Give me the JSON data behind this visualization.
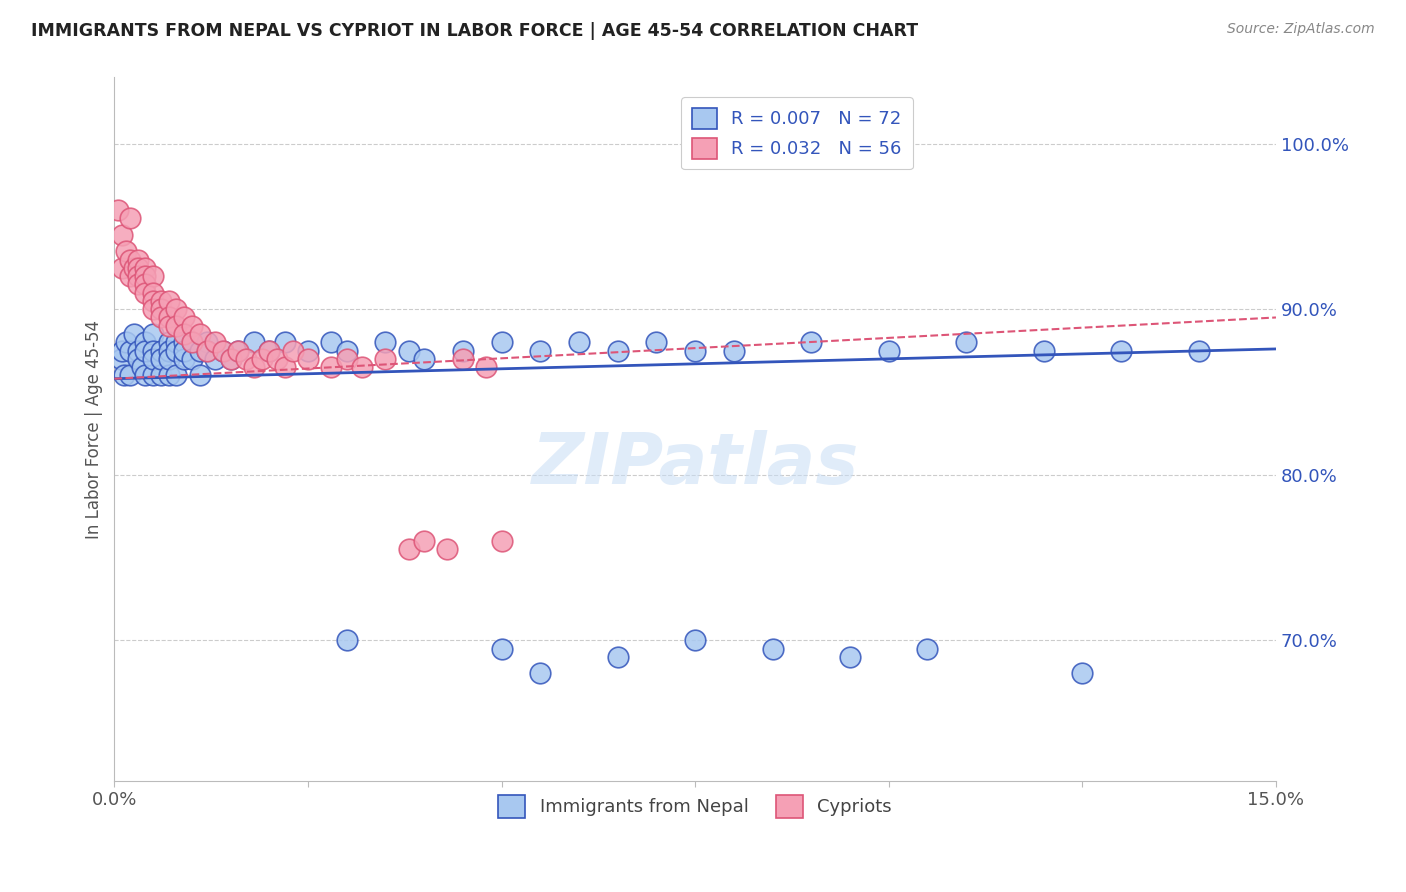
{
  "title": "IMMIGRANTS FROM NEPAL VS CYPRIOT IN LABOR FORCE | AGE 45-54 CORRELATION CHART",
  "source": "Source: ZipAtlas.com",
  "ylabel": "In Labor Force | Age 45-54",
  "ytick_labels": [
    "100.0%",
    "90.0%",
    "80.0%",
    "70.0%"
  ],
  "ytick_values": [
    1.0,
    0.9,
    0.8,
    0.7
  ],
  "xlim": [
    0.0,
    0.15
  ],
  "ylim": [
    0.615,
    1.04
  ],
  "color_blue": "#a8c8f0",
  "color_pink": "#f5a0b5",
  "line_blue": "#3355bb",
  "line_pink": "#dd5577",
  "nepal_x": [
    0.0008,
    0.001,
    0.0012,
    0.0015,
    0.002,
    0.002,
    0.0025,
    0.003,
    0.003,
    0.0035,
    0.004,
    0.004,
    0.004,
    0.005,
    0.005,
    0.005,
    0.005,
    0.006,
    0.006,
    0.006,
    0.007,
    0.007,
    0.007,
    0.007,
    0.008,
    0.008,
    0.008,
    0.009,
    0.009,
    0.009,
    0.01,
    0.01,
    0.011,
    0.011,
    0.012,
    0.012,
    0.013,
    0.014,
    0.015,
    0.016,
    0.018,
    0.02,
    0.022,
    0.025,
    0.028,
    0.03,
    0.035,
    0.038,
    0.04,
    0.045,
    0.05,
    0.055,
    0.06,
    0.065,
    0.07,
    0.075,
    0.08,
    0.09,
    0.1,
    0.11,
    0.12,
    0.13,
    0.14,
    0.03,
    0.05,
    0.055,
    0.065,
    0.075,
    0.085,
    0.095,
    0.105,
    0.125
  ],
  "nepal_y": [
    0.87,
    0.875,
    0.86,
    0.88,
    0.875,
    0.86,
    0.885,
    0.875,
    0.87,
    0.865,
    0.88,
    0.875,
    0.86,
    0.885,
    0.875,
    0.86,
    0.87,
    0.875,
    0.86,
    0.87,
    0.88,
    0.875,
    0.86,
    0.87,
    0.88,
    0.875,
    0.86,
    0.88,
    0.87,
    0.875,
    0.88,
    0.87,
    0.875,
    0.86,
    0.88,
    0.875,
    0.87,
    0.875,
    0.87,
    0.875,
    0.88,
    0.875,
    0.88,
    0.875,
    0.88,
    0.875,
    0.88,
    0.875,
    0.87,
    0.875,
    0.88,
    0.875,
    0.88,
    0.875,
    0.88,
    0.875,
    0.875,
    0.88,
    0.875,
    0.88,
    0.875,
    0.875,
    0.875,
    0.7,
    0.695,
    0.68,
    0.69,
    0.7,
    0.695,
    0.69,
    0.695,
    0.68
  ],
  "cypriot_x": [
    0.0005,
    0.001,
    0.001,
    0.0015,
    0.002,
    0.002,
    0.002,
    0.0025,
    0.003,
    0.003,
    0.003,
    0.003,
    0.004,
    0.004,
    0.004,
    0.004,
    0.005,
    0.005,
    0.005,
    0.005,
    0.006,
    0.006,
    0.006,
    0.007,
    0.007,
    0.007,
    0.008,
    0.008,
    0.009,
    0.009,
    0.01,
    0.01,
    0.011,
    0.012,
    0.013,
    0.014,
    0.015,
    0.016,
    0.017,
    0.018,
    0.019,
    0.02,
    0.021,
    0.022,
    0.023,
    0.025,
    0.028,
    0.03,
    0.032,
    0.035,
    0.038,
    0.04,
    0.043,
    0.045,
    0.048,
    0.05
  ],
  "cypriot_y": [
    0.96,
    0.945,
    0.925,
    0.935,
    0.93,
    0.955,
    0.92,
    0.925,
    0.93,
    0.925,
    0.92,
    0.915,
    0.925,
    0.92,
    0.915,
    0.91,
    0.92,
    0.91,
    0.905,
    0.9,
    0.905,
    0.9,
    0.895,
    0.905,
    0.895,
    0.89,
    0.9,
    0.89,
    0.895,
    0.885,
    0.89,
    0.88,
    0.885,
    0.875,
    0.88,
    0.875,
    0.87,
    0.875,
    0.87,
    0.865,
    0.87,
    0.875,
    0.87,
    0.865,
    0.875,
    0.87,
    0.865,
    0.87,
    0.865,
    0.87,
    0.755,
    0.76,
    0.755,
    0.87,
    0.865,
    0.76
  ],
  "nepal_trend_x": [
    0.0,
    0.15
  ],
  "nepal_trend_y": [
    0.858,
    0.876
  ],
  "cypriot_trend_x": [
    0.0,
    0.15
  ],
  "cypriot_trend_y": [
    0.858,
    0.895
  ],
  "watermark": "ZIPatlas",
  "legend1_text": "R = 0.007   N = 72",
  "legend2_text": "R = 0.032   N = 56"
}
